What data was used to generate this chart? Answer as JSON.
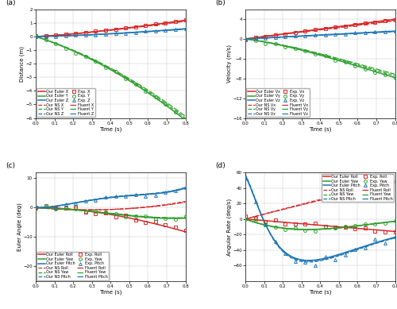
{
  "colors": {
    "red": "#d62728",
    "green": "#2ca02c",
    "blue": "#1f77b4"
  },
  "panel_a": {
    "ylabel": "Distance (m)",
    "xlabel": "Time (s)",
    "label": "(a)",
    "ylim": [
      -6,
      2
    ],
    "yticks": [
      -6,
      -5,
      -4,
      -3,
      -2,
      -1,
      0,
      1,
      2
    ]
  },
  "panel_b": {
    "ylabel": "Velocity (m/s)",
    "xlabel": "Time (s)",
    "label": "(b)",
    "ylim": [
      -16,
      6
    ],
    "yticks": [
      -16,
      -12,
      -8,
      -4,
      0,
      4
    ]
  },
  "panel_c": {
    "ylabel": "Euler Angle (deg)",
    "xlabel": "Time (s)",
    "label": "(c)",
    "ylim": [
      -25,
      12
    ],
    "yticks": [
      -20,
      -10,
      0,
      10
    ]
  },
  "panel_d": {
    "ylabel": "Angular Rate (deg/s)",
    "xlabel": "Time (s)",
    "label": "(d)",
    "ylim": [
      -80,
      60
    ],
    "yticks": [
      -60,
      -40,
      -20,
      0,
      20,
      40,
      60
    ]
  }
}
